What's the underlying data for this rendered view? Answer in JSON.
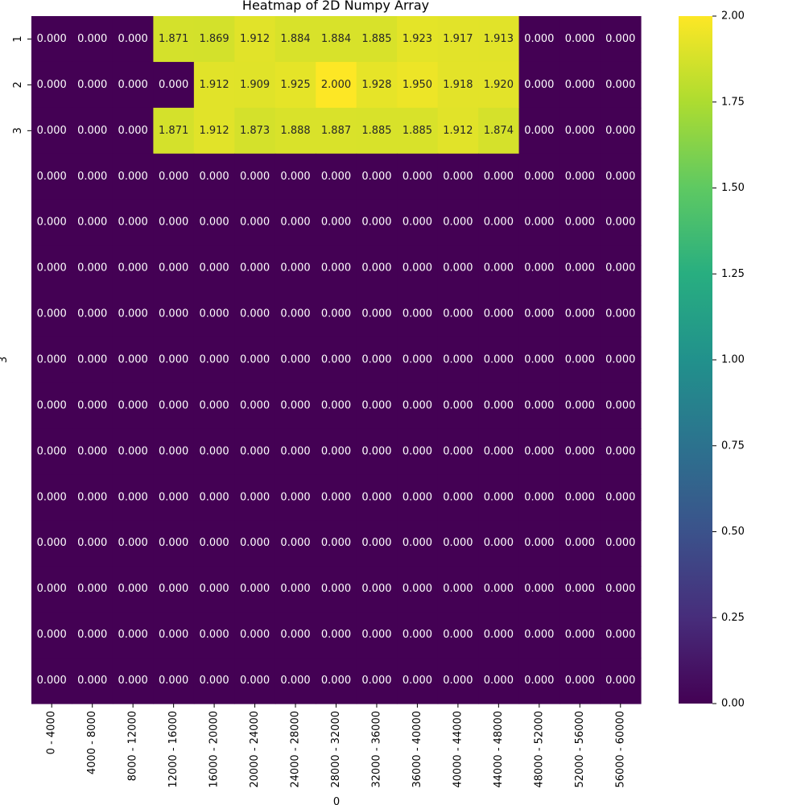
{
  "chart_data": {
    "type": "heatmap",
    "title": "Heatmap of 2D Numpy Array",
    "xlabel": "0",
    "ylabel": "3",
    "colormap": "viridis",
    "vmin": 0.0,
    "vmax": 2.0,
    "colorbar_ticks": [
      "0.00",
      "0.25",
      "0.50",
      "0.75",
      "1.00",
      "1.25",
      "1.50",
      "1.75",
      "2.00"
    ],
    "x_categories": [
      "0 - 4000",
      "4000 - 8000",
      "8000 - 12000",
      "12000 - 16000",
      "16000 - 20000",
      "20000 - 24000",
      "24000 - 28000",
      "28000 - 32000",
      "32000 - 36000",
      "36000 - 40000",
      "40000 - 44000",
      "44000 - 48000",
      "48000 - 52000",
      "52000 - 56000",
      "56000 - 60000"
    ],
    "y_tick_labels": [
      "1",
      "2",
      "3",
      "",
      "",
      "",
      "",
      "",
      "",
      "",
      "",
      "",
      "",
      "",
      ""
    ],
    "values": [
      [
        0,
        0,
        0,
        1.871,
        1.869,
        1.912,
        1.884,
        1.884,
        1.885,
        1.923,
        1.917,
        1.913,
        0,
        0,
        0
      ],
      [
        0,
        0,
        0,
        0,
        1.912,
        1.909,
        1.925,
        2.0,
        1.928,
        1.95,
        1.918,
        1.92,
        0,
        0,
        0
      ],
      [
        0,
        0,
        0,
        1.871,
        1.912,
        1.873,
        1.888,
        1.887,
        1.885,
        1.885,
        1.912,
        1.874,
        0,
        0,
        0
      ],
      [
        0,
        0,
        0,
        0,
        0,
        0,
        0,
        0,
        0,
        0,
        0,
        0,
        0,
        0,
        0
      ],
      [
        0,
        0,
        0,
        0,
        0,
        0,
        0,
        0,
        0,
        0,
        0,
        0,
        0,
        0,
        0
      ],
      [
        0,
        0,
        0,
        0,
        0,
        0,
        0,
        0,
        0,
        0,
        0,
        0,
        0,
        0,
        0
      ],
      [
        0,
        0,
        0,
        0,
        0,
        0,
        0,
        0,
        0,
        0,
        0,
        0,
        0,
        0,
        0
      ],
      [
        0,
        0,
        0,
        0,
        0,
        0,
        0,
        0,
        0,
        0,
        0,
        0,
        0,
        0,
        0
      ],
      [
        0,
        0,
        0,
        0,
        0,
        0,
        0,
        0,
        0,
        0,
        0,
        0,
        0,
        0,
        0
      ],
      [
        0,
        0,
        0,
        0,
        0,
        0,
        0,
        0,
        0,
        0,
        0,
        0,
        0,
        0,
        0
      ],
      [
        0,
        0,
        0,
        0,
        0,
        0,
        0,
        0,
        0,
        0,
        0,
        0,
        0,
        0,
        0
      ],
      [
        0,
        0,
        0,
        0,
        0,
        0,
        0,
        0,
        0,
        0,
        0,
        0,
        0,
        0,
        0
      ],
      [
        0,
        0,
        0,
        0,
        0,
        0,
        0,
        0,
        0,
        0,
        0,
        0,
        0,
        0,
        0
      ],
      [
        0,
        0,
        0,
        0,
        0,
        0,
        0,
        0,
        0,
        0,
        0,
        0,
        0,
        0,
        0
      ],
      [
        0,
        0,
        0,
        0,
        0,
        0,
        0,
        0,
        0,
        0,
        0,
        0,
        0,
        0,
        0
      ]
    ]
  }
}
